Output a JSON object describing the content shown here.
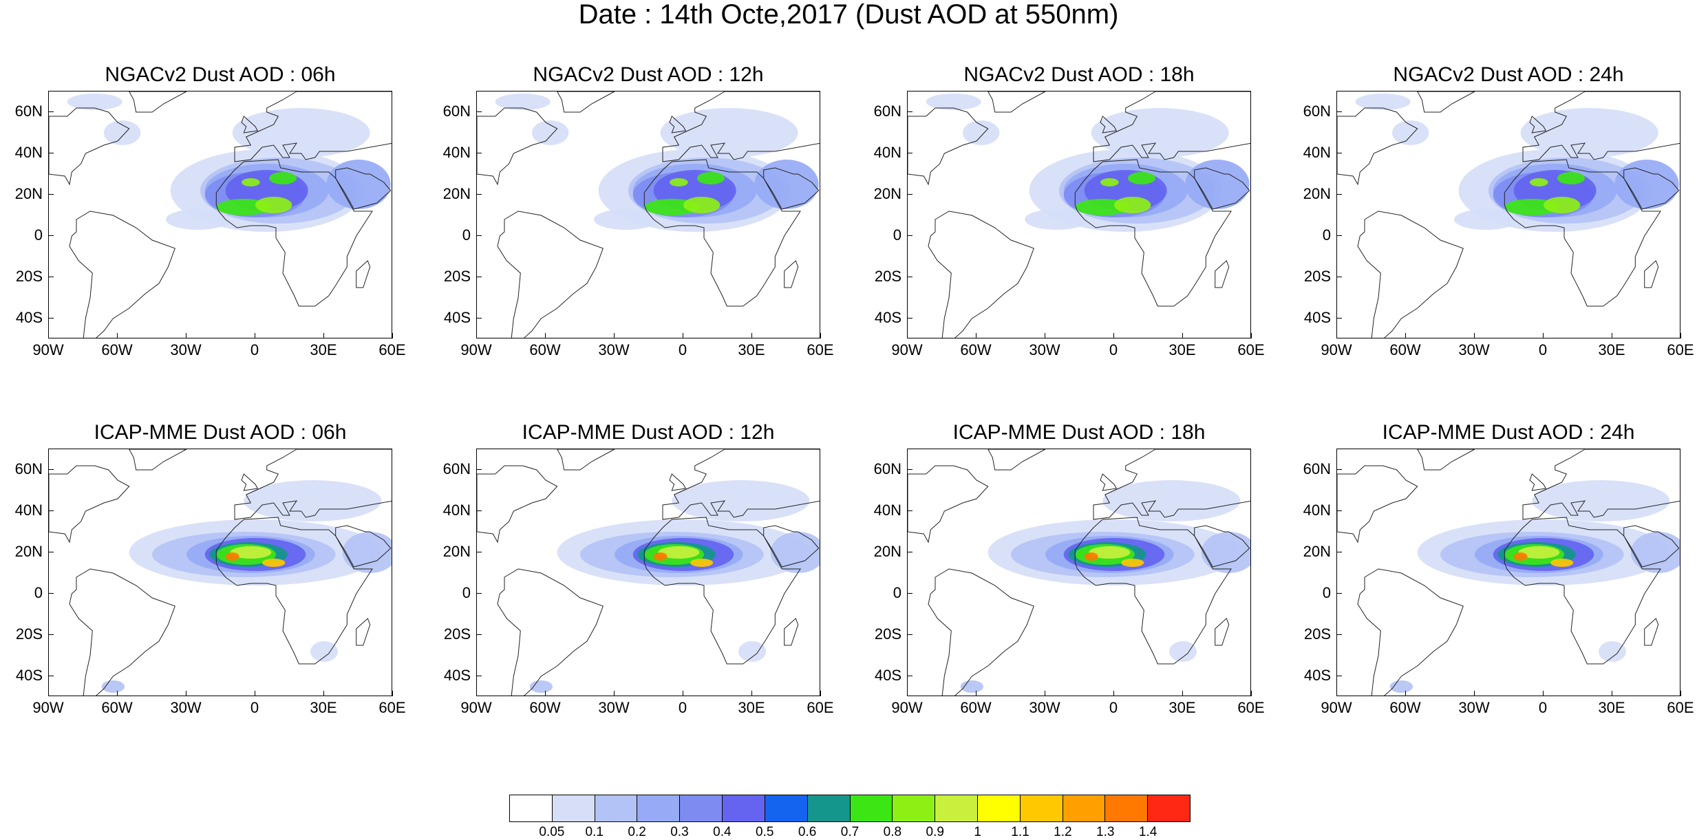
{
  "title": "Date : 14th Octe,2017 (Dust AOD at 550nm)",
  "panels": [
    {
      "title": "NGACv2 Dust AOD : 06h",
      "model": "ngac"
    },
    {
      "title": "NGACv2 Dust AOD : 12h",
      "model": "ngac"
    },
    {
      "title": "NGACv2 Dust AOD : 18h",
      "model": "ngac"
    },
    {
      "title": "NGACv2 Dust AOD : 24h",
      "model": "ngac"
    },
    {
      "title": "ICAP-MME Dust AOD : 06h",
      "model": "icap"
    },
    {
      "title": "ICAP-MME Dust AOD : 12h",
      "model": "icap"
    },
    {
      "title": "ICAP-MME Dust AOD : 18h",
      "model": "icap"
    },
    {
      "title": "ICAP-MME Dust AOD : 24h",
      "model": "icap"
    }
  ],
  "lat_labels": [
    "60N",
    "40N",
    "20N",
    "0",
    "20S",
    "40S"
  ],
  "lon_labels": [
    "90W",
    "60W",
    "30W",
    "0",
    "30E",
    "60E"
  ],
  "colorbar": {
    "labels": [
      "0.05",
      "0.1",
      "0.2",
      "0.3",
      "0.4",
      "0.5",
      "0.6",
      "0.7",
      "0.8",
      "0.9",
      "1",
      "1.1",
      "1.2",
      "1.3",
      "1.4"
    ],
    "colors": [
      "#ffffff",
      "#d6def8",
      "#b4c3f5",
      "#96aaf5",
      "#7e8cf2",
      "#6464f0",
      "#1464f0",
      "#14968c",
      "#3ce614",
      "#8cf014",
      "#c8f03c",
      "#ffff00",
      "#ffc800",
      "#ffa000",
      "#ff7800",
      "#ff2814"
    ]
  }
}
